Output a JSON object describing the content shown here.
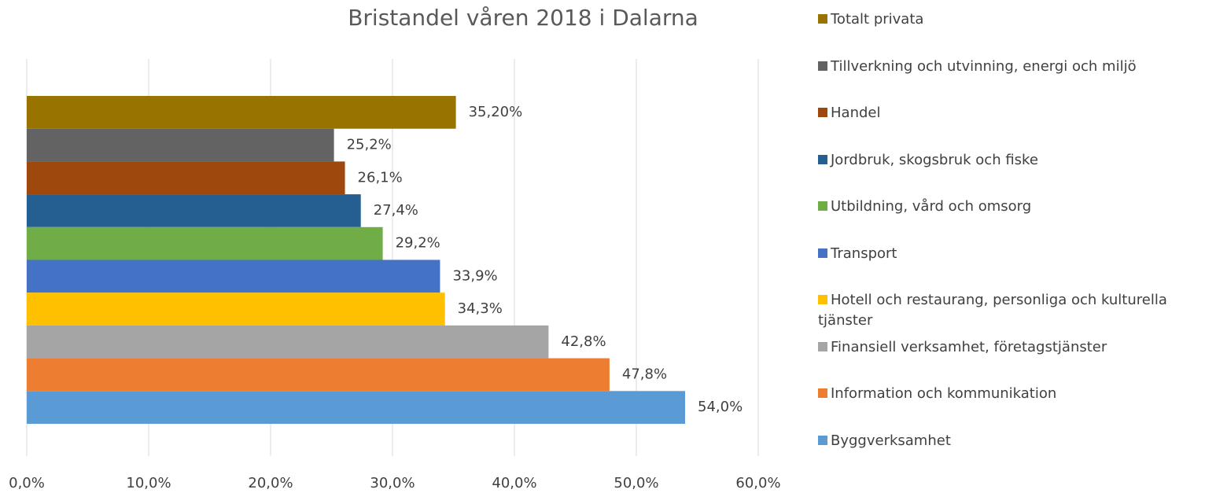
{
  "chart_data": {
    "type": "bar",
    "orientation": "horizontal",
    "title": "Bristandel våren 2018 i Dalarna",
    "series": [
      {
        "name": "Totalt privata",
        "color": "#997300",
        "values": [
          35.2
        ],
        "value_labels": [
          "35,20%"
        ]
      },
      {
        "name": "Tillverkning och utvinning, energi och miljö",
        "color": "#636363",
        "values": [
          25.2
        ],
        "value_labels": [
          "25,2%"
        ]
      },
      {
        "name": "Handel",
        "color": "#9e480e",
        "values": [
          26.1
        ],
        "value_labels": [
          "26,1%"
        ]
      },
      {
        "name": "Jordbruk, skogsbruk och fiske",
        "color": "#255e91",
        "values": [
          27.4
        ],
        "value_labels": [
          "27,4%"
        ]
      },
      {
        "name": "Utbildning, vård och omsorg",
        "color": "#70ad47",
        "values": [
          29.2
        ],
        "value_labels": [
          "29,2%"
        ]
      },
      {
        "name": "Transport",
        "color": "#4472c4",
        "values": [
          33.9
        ],
        "value_labels": [
          "33,9%"
        ]
      },
      {
        "name": "Hotell och restaurang, personliga och kulturella tjänster",
        "color": "#ffc000",
        "values": [
          34.3
        ],
        "value_labels": [
          "34,3%"
        ]
      },
      {
        "name": "Finansiell verksamhet, företagstjänster",
        "color": "#a5a5a5",
        "values": [
          42.8
        ],
        "value_labels": [
          "42,8%"
        ]
      },
      {
        "name": "Information och kommunikation",
        "color": "#ed7d31",
        "values": [
          47.8
        ],
        "value_labels": [
          "47,8%"
        ]
      },
      {
        "name": "Byggverksamhet",
        "color": "#5b9bd5",
        "values": [
          54.0
        ],
        "value_labels": [
          "54,0%"
        ]
      }
    ],
    "xlim": [
      0,
      60
    ],
    "xticks": [
      {
        "value": 0,
        "label": "0,0%"
      },
      {
        "value": 10,
        "label": "10,0%"
      },
      {
        "value": 20,
        "label": "20,0%"
      },
      {
        "value": 30,
        "label": "30,0%"
      },
      {
        "value": 40,
        "label": "40,0%"
      },
      {
        "value": 50,
        "label": "50,0%"
      },
      {
        "value": 60,
        "label": "60,0%"
      }
    ],
    "grid": true,
    "legend": "right"
  }
}
